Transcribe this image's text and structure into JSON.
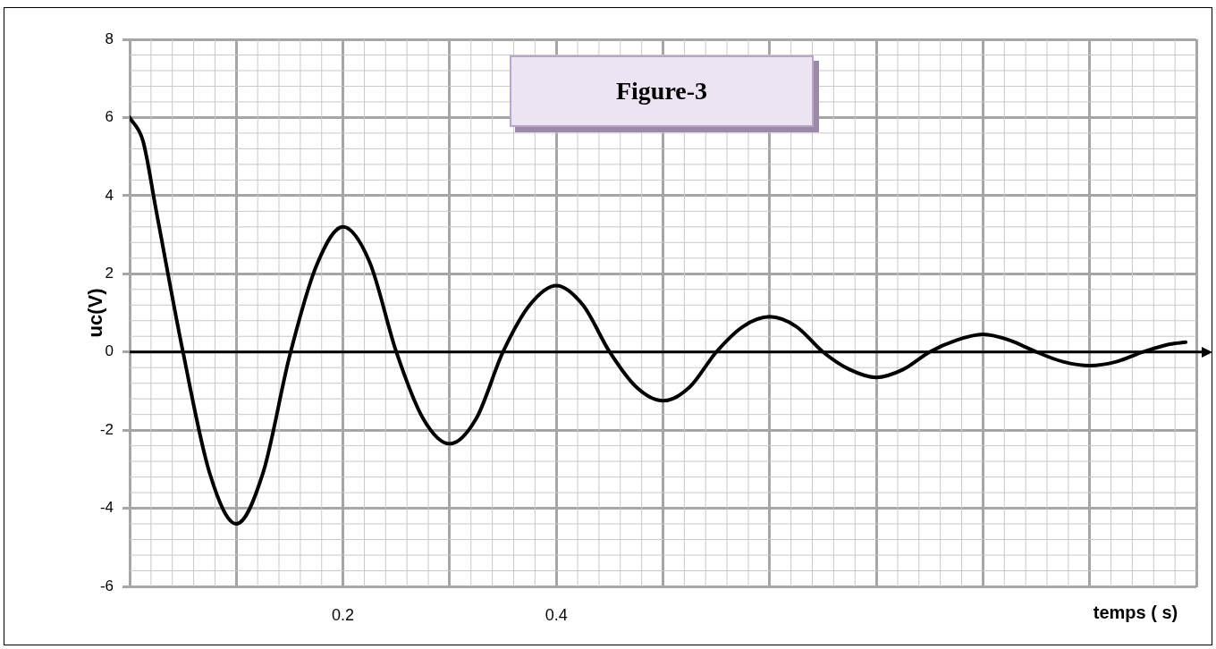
{
  "chart_data": {
    "type": "line",
    "xlabel": "temps ( s)",
    "ylabel": "uc(V)",
    "annotations": [
      "Figure-3"
    ],
    "xlim": [
      0,
      1
    ],
    "xticks": [
      {
        "value": 0,
        "label": null
      },
      {
        "value": 0.1,
        "label": null
      },
      0.2,
      {
        "value": 0.3,
        "label": null
      },
      0.4,
      {
        "value": 0.5,
        "label": null
      },
      {
        "value": 0.6,
        "label": null
      },
      {
        "value": 0.7,
        "label": null
      },
      {
        "value": 0.8,
        "label": null
      },
      {
        "value": 0.9,
        "label": null
      },
      {
        "value": 1,
        "label": null
      }
    ],
    "ylim": [
      -6,
      8
    ],
    "yticks": [
      -6,
      -4,
      -2,
      0,
      2,
      4,
      6,
      8
    ],
    "grid": true,
    "legend": false,
    "marker": "none",
    "line_style": "solid",
    "ref_lines": [
      {
        "axis": "y",
        "value": 0,
        "color": "#000000"
      }
    ],
    "series": [
      {
        "color": "#000000",
        "x": [
          0,
          0.0125,
          0.025,
          0.05,
          0.075,
          0.1,
          0.125,
          0.15,
          0.175,
          0.2,
          0.225,
          0.25,
          0.275,
          0.3,
          0.325,
          0.35,
          0.375,
          0.4,
          0.425,
          0.45,
          0.475,
          0.5,
          0.525,
          0.55,
          0.575,
          0.6,
          0.625,
          0.65,
          0.675,
          0.7,
          0.725,
          0.75,
          0.775,
          0.8,
          0.825,
          0.85,
          0.875,
          0.9,
          0.925,
          0.95,
          0.975,
          0.99
        ],
        "values": [
          6,
          5.4,
          3.6,
          0,
          -3.1,
          -4.4,
          -3.1,
          -0.1,
          2.2,
          3.2,
          2.3,
          0,
          -1.7,
          -2.35,
          -1.7,
          0,
          1.2,
          1.7,
          1.2,
          0,
          -0.9,
          -1.25,
          -0.9,
          0,
          0.65,
          0.9,
          0.65,
          0,
          -0.45,
          -0.65,
          -0.45,
          0,
          0.3,
          0.45,
          0.3,
          0,
          -0.25,
          -0.35,
          -0.25,
          0,
          0.2,
          0.25
        ]
      }
    ]
  }
}
